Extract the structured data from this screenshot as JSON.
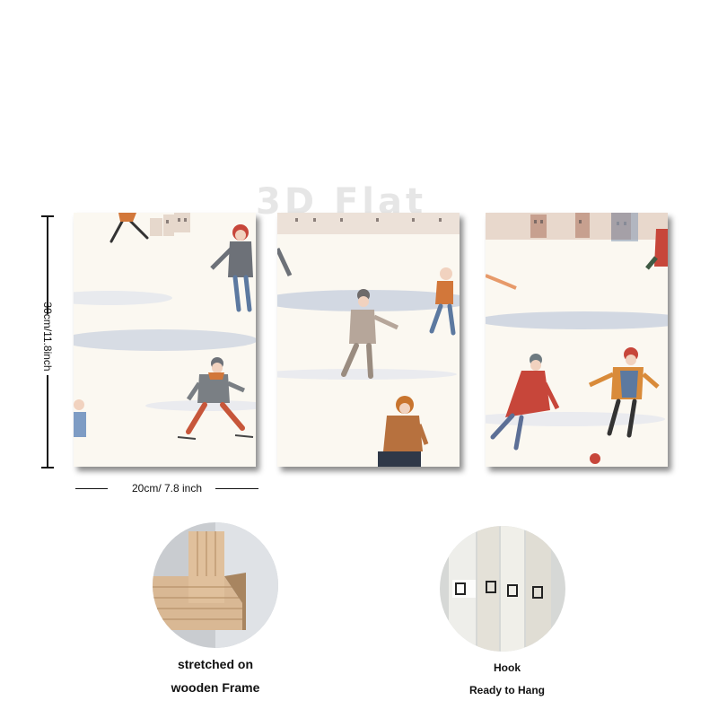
{
  "watermark": "3D Flat",
  "dimensions": {
    "height_label": "30cm/11.8inch",
    "width_label": "20cm/ 7.8 inch"
  },
  "features": {
    "frame_caption_line1": "stretched on",
    "frame_caption_line2": "wooden Frame",
    "hook_caption_line1": "Hook",
    "hook_caption_line2": "Ready to Hang"
  },
  "colors": {
    "snow": "#fbf8f1",
    "ice_blue": "#b9c4d4",
    "orange": "#d2773a",
    "red": "#c7463a",
    "grey_coat": "#6d7178",
    "wood": "#d9b894"
  }
}
